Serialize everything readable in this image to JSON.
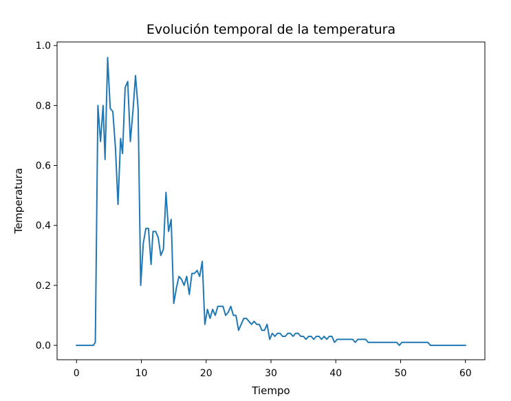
{
  "chart_data": {
    "type": "line",
    "title": "Evolución temporal de la temperatura",
    "xlabel": "Tiempo",
    "ylabel": "Temperatura",
    "xlim": [
      -3.0,
      63.0
    ],
    "ylim": [
      -0.048,
      1.012
    ],
    "xticks": [
      0,
      10,
      20,
      30,
      40,
      50,
      60
    ],
    "yticks": [
      0.0,
      0.2,
      0.4,
      0.6,
      0.8,
      1.0
    ],
    "xtick_labels": [
      "0",
      "10",
      "20",
      "30",
      "40",
      "50",
      "60"
    ],
    "ytick_labels": [
      "0.0",
      "0.2",
      "0.4",
      "0.6",
      "0.8",
      "1.0"
    ],
    "grid": false,
    "line_color": "#1f77b4",
    "series": [
      {
        "x": [
          0,
          2.6,
          2.9,
          3.3,
          3.7,
          4.1,
          4.4,
          4.8,
          5.2,
          5.6,
          6.0,
          6.4,
          6.8,
          7.1,
          7.5,
          7.9,
          8.3,
          8.7,
          9.1,
          9.5,
          9.9,
          10.3,
          10.7,
          11.1,
          11.5,
          11.8,
          12.2,
          12.6,
          13.0,
          13.4,
          13.8,
          14.2,
          14.6,
          15.0,
          15.4,
          15.8,
          16.2,
          16.6,
          17.0,
          17.4,
          17.8,
          18.2,
          18.6,
          19.0,
          19.4,
          19.8,
          20.2,
          20.6,
          21.0,
          21.4,
          21.8,
          22.2,
          22.6,
          23.0,
          23.4,
          23.8,
          24.2,
          24.6,
          25.0,
          25.4,
          25.8,
          26.2,
          26.6,
          27.0,
          27.4,
          27.8,
          28.2,
          28.6,
          29.0,
          29.4,
          29.8,
          30.2,
          30.6,
          31.0,
          31.4,
          31.8,
          32.2,
          32.6,
          33.0,
          33.4,
          33.8,
          34.2,
          34.6,
          35.0,
          35.4,
          35.8,
          36.2,
          36.6,
          37.0,
          37.4,
          37.8,
          38.2,
          38.6,
          39.0,
          39.4,
          39.8,
          40.2,
          40.6,
          41.0,
          41.4,
          41.8,
          42.2,
          42.6,
          43.0,
          43.4,
          43.8,
          44.2,
          44.6,
          45.0,
          45.4,
          45.8,
          46.2,
          46.6,
          47.0,
          47.4,
          47.8,
          48.2,
          48.6,
          49.0,
          49.4,
          49.8,
          50.2,
          50.6,
          51.0,
          51.4,
          51.8,
          52.2,
          52.6,
          53.0,
          53.4,
          53.8,
          54.2,
          54.6,
          55.0,
          55.4,
          55.8,
          56.2,
          56.6,
          57.0,
          57.4,
          57.8,
          58.2,
          58.6,
          59.0,
          59.4,
          59.8,
          60.0
        ],
        "values": [
          0.0,
          0.0,
          0.01,
          0.8,
          0.68,
          0.8,
          0.62,
          0.96,
          0.79,
          0.78,
          0.66,
          0.47,
          0.69,
          0.64,
          0.86,
          0.88,
          0.68,
          0.78,
          0.9,
          0.79,
          0.2,
          0.34,
          0.39,
          0.39,
          0.27,
          0.38,
          0.38,
          0.36,
          0.3,
          0.32,
          0.51,
          0.38,
          0.42,
          0.14,
          0.19,
          0.23,
          0.22,
          0.2,
          0.23,
          0.17,
          0.24,
          0.24,
          0.25,
          0.23,
          0.28,
          0.07,
          0.12,
          0.09,
          0.12,
          0.1,
          0.13,
          0.13,
          0.13,
          0.1,
          0.11,
          0.13,
          0.1,
          0.1,
          0.05,
          0.07,
          0.09,
          0.09,
          0.08,
          0.07,
          0.08,
          0.07,
          0.07,
          0.05,
          0.05,
          0.07,
          0.02,
          0.04,
          0.03,
          0.04,
          0.04,
          0.03,
          0.03,
          0.04,
          0.04,
          0.03,
          0.04,
          0.04,
          0.03,
          0.03,
          0.02,
          0.03,
          0.03,
          0.02,
          0.03,
          0.03,
          0.02,
          0.03,
          0.02,
          0.03,
          0.03,
          0.01,
          0.02,
          0.02,
          0.02,
          0.02,
          0.02,
          0.02,
          0.02,
          0.01,
          0.02,
          0.02,
          0.02,
          0.02,
          0.01,
          0.01,
          0.01,
          0.01,
          0.01,
          0.01,
          0.01,
          0.01,
          0.01,
          0.01,
          0.01,
          0.01,
          0.0,
          0.01,
          0.01,
          0.01,
          0.01,
          0.01,
          0.01,
          0.01,
          0.01,
          0.01,
          0.01,
          0.01,
          0.0,
          0.0,
          0.0,
          0.0,
          0.0,
          0.0,
          0.0,
          0.0,
          0.0,
          0.0,
          0.0,
          0.0,
          0.0,
          0.0,
          0.0
        ]
      }
    ]
  }
}
